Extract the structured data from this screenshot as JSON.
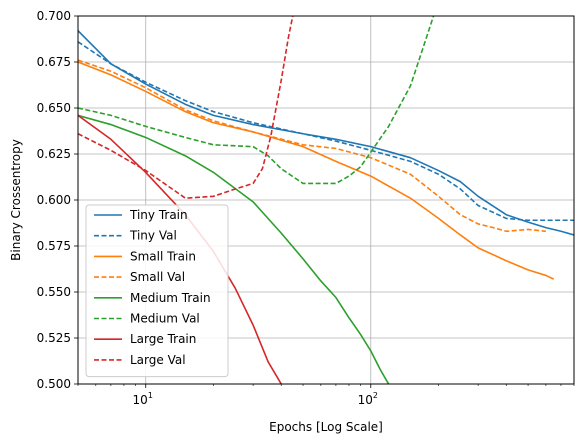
{
  "chart_data": {
    "type": "line",
    "title": "",
    "xlabel": "Epochs [Log Scale]",
    "ylabel": "Binary Crossentropy",
    "x_scale": "log",
    "xlim": [
      5,
      800
    ],
    "ylim": [
      0.5,
      0.7
    ],
    "grid": true,
    "legend_position": "lower-left",
    "x_ticks": [
      {
        "value": 10,
        "base": "10",
        "exp": "1"
      },
      {
        "value": 100,
        "base": "10",
        "exp": "2"
      }
    ],
    "y_ticks": [
      {
        "value": 0.5,
        "label": "0.500"
      },
      {
        "value": 0.525,
        "label": "0.525"
      },
      {
        "value": 0.55,
        "label": "0.550"
      },
      {
        "value": 0.575,
        "label": "0.575"
      },
      {
        "value": 0.6,
        "label": "0.600"
      },
      {
        "value": 0.625,
        "label": "0.625"
      },
      {
        "value": 0.65,
        "label": "0.650"
      },
      {
        "value": 0.675,
        "label": "0.675"
      },
      {
        "value": 0.7,
        "label": "0.700"
      }
    ],
    "series": [
      {
        "name": "Tiny Train",
        "color": "#1f77b4",
        "dash": "solid",
        "x": [
          5,
          7,
          10,
          15,
          20,
          30,
          50,
          70,
          100,
          150,
          200,
          250,
          300,
          400,
          500,
          600,
          700,
          800
        ],
        "y": [
          0.692,
          0.674,
          0.663,
          0.652,
          0.646,
          0.641,
          0.636,
          0.633,
          0.629,
          0.623,
          0.616,
          0.61,
          0.602,
          0.592,
          0.588,
          0.585,
          0.583,
          0.581
        ]
      },
      {
        "name": "Tiny Val",
        "color": "#1f77b4",
        "dash": "dashed",
        "x": [
          5,
          7,
          10,
          15,
          20,
          30,
          50,
          70,
          100,
          150,
          200,
          250,
          300,
          400,
          500,
          600,
          700,
          800
        ],
        "y": [
          0.686,
          0.674,
          0.664,
          0.654,
          0.648,
          0.642,
          0.636,
          0.632,
          0.627,
          0.621,
          0.614,
          0.606,
          0.597,
          0.59,
          0.589,
          0.589,
          0.589,
          0.589
        ]
      },
      {
        "name": "Small Train",
        "color": "#ff7f0e",
        "dash": "solid",
        "x": [
          5,
          7,
          10,
          15,
          20,
          30,
          50,
          70,
          100,
          150,
          200,
          250,
          300,
          400,
          500,
          600,
          650
        ],
        "y": [
          0.675,
          0.668,
          0.659,
          0.648,
          0.642,
          0.637,
          0.629,
          0.621,
          0.613,
          0.601,
          0.59,
          0.581,
          0.574,
          0.567,
          0.562,
          0.559,
          0.557
        ]
      },
      {
        "name": "Small Val",
        "color": "#ff7f0e",
        "dash": "dashed",
        "x": [
          5,
          7,
          10,
          15,
          20,
          30,
          50,
          70,
          100,
          150,
          200,
          250,
          300,
          350,
          400,
          500,
          600
        ],
        "y": [
          0.676,
          0.67,
          0.661,
          0.649,
          0.643,
          0.637,
          0.63,
          0.628,
          0.623,
          0.614,
          0.602,
          0.592,
          0.587,
          0.585,
          0.583,
          0.584,
          0.583
        ]
      },
      {
        "name": "Medium Train",
        "color": "#2ca02c",
        "dash": "solid",
        "x": [
          5,
          7,
          10,
          15,
          20,
          30,
          40,
          50,
          60,
          70,
          80,
          90,
          100,
          110,
          120
        ],
        "y": [
          0.646,
          0.641,
          0.634,
          0.624,
          0.615,
          0.599,
          0.582,
          0.568,
          0.556,
          0.547,
          0.536,
          0.527,
          0.518,
          0.508,
          0.5
        ]
      },
      {
        "name": "Medium Val",
        "color": "#2ca02c",
        "dash": "dashed",
        "x": [
          5,
          7,
          10,
          15,
          20,
          30,
          35,
          40,
          50,
          60,
          70,
          80,
          90,
          100,
          120,
          150,
          170,
          190
        ],
        "y": [
          0.65,
          0.646,
          0.64,
          0.634,
          0.63,
          0.629,
          0.624,
          0.617,
          0.609,
          0.609,
          0.609,
          0.613,
          0.618,
          0.626,
          0.64,
          0.662,
          0.682,
          0.7
        ]
      },
      {
        "name": "Large Train",
        "color": "#d62728",
        "dash": "solid",
        "x": [
          5,
          7,
          10,
          15,
          20,
          25,
          30,
          35,
          40
        ],
        "y": [
          0.646,
          0.633,
          0.615,
          0.592,
          0.572,
          0.552,
          0.532,
          0.512,
          0.5
        ]
      },
      {
        "name": "Large Val",
        "color": "#d62728",
        "dash": "dashed",
        "x": [
          5,
          7,
          10,
          15,
          20,
          25,
          30,
          33,
          36,
          40,
          43,
          45
        ],
        "y": [
          0.636,
          0.627,
          0.616,
          0.601,
          0.602,
          0.606,
          0.609,
          0.617,
          0.635,
          0.665,
          0.688,
          0.7
        ]
      }
    ]
  }
}
